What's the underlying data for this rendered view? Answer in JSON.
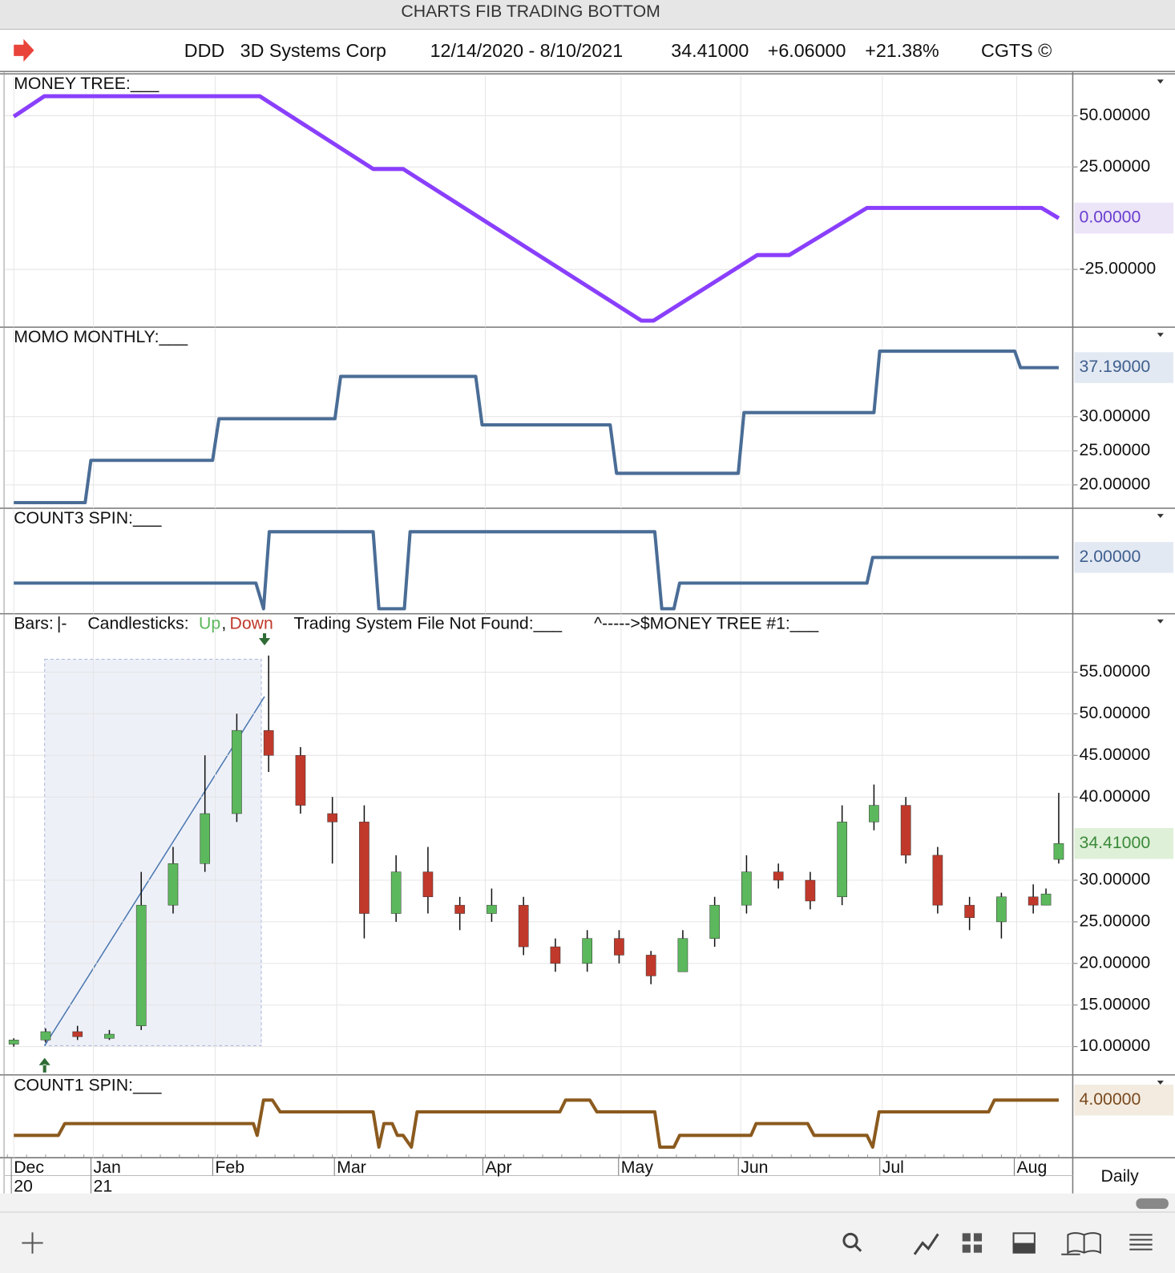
{
  "window_title": "CHARTS FIB TRADING BOTTOM",
  "header": {
    "symbol": "DDD",
    "name": "3D Systems Corp",
    "date_range": "12/14/2020 - 8/10/2021",
    "price": "34.41000",
    "change": "+6.06000",
    "change_pct": "+21.38%",
    "brand": "CGTS ©"
  },
  "chart_data": [
    {
      "type": "line",
      "title": "MONEY TREE:___",
      "color": "#8a3ffc",
      "x": [
        0,
        4.8,
        38.6,
        56.4,
        61.1,
        98.5,
        100.4,
        116.7,
        121.7,
        133.9,
        161.3,
        164
      ],
      "values": [
        49.6,
        59.5,
        59.5,
        24,
        24,
        -50,
        -50,
        -18,
        -18,
        5,
        5,
        0
      ],
      "last_label": "0.00000",
      "ylim": [
        -52,
        70
      ],
      "yticks": [
        {
          "value": 50,
          "label": "50.00000"
        },
        {
          "value": 25,
          "label": "25.00000"
        },
        {
          "value": -25,
          "label": "-25.00000"
        }
      ]
    },
    {
      "type": "line",
      "title": "MOMO MONTHLY:___",
      "color": "#4a6d96",
      "x": [
        0,
        11.2,
        12.1,
        31.2,
        32.2,
        50.4,
        51.3,
        72.5,
        73.5,
        93.6,
        94.6,
        113.7,
        114.6,
        135,
        135.9,
        157.1,
        158,
        164
      ],
      "values": [
        17.4,
        17.4,
        23.6,
        23.6,
        29.7,
        29.7,
        35.9,
        35.9,
        28.8,
        28.8,
        21.7,
        21.7,
        30.6,
        30.6,
        39.6,
        39.6,
        37.19,
        37.19
      ],
      "last_label": "37.19000",
      "ylim": [
        16.7,
        43
      ],
      "yticks": [
        {
          "value": 30,
          "label": "30.00000"
        },
        {
          "value": 25,
          "label": "25.00000"
        },
        {
          "value": 20,
          "label": "20.00000"
        }
      ]
    },
    {
      "type": "line",
      "title": "COUNT3 SPIN:___",
      "color": "#4a6d96",
      "x": [
        0,
        38,
        39.2,
        40.1,
        56.4,
        57.3,
        61.3,
        62.2,
        100.6,
        101.7,
        103.6,
        104.5,
        133.9,
        134.8,
        164
      ],
      "values": [
        1,
        1,
        0,
        3,
        3,
        0,
        0,
        3,
        3,
        0,
        0,
        1,
        1,
        2,
        2
      ],
      "last_label": "2.00000",
      "ylim": [
        -0.1,
        3.6
      ],
      "yticks": []
    },
    {
      "type": "candlestick",
      "legend": {
        "bars": "Bars:",
        "bars_symbol": "|-",
        "candles": "Candlesticks:",
        "up": "Up",
        "sep": ",",
        "down": "Down",
        "system": "Trading System File Not Found:___",
        "link": "^----->$MONEY TREE #1:___"
      },
      "up_color": "#5cb85c",
      "down_color": "#c0392b",
      "x": [
        0,
        5,
        10,
        15,
        20,
        25,
        30,
        35,
        40,
        45,
        50,
        55,
        60,
        65,
        70,
        75,
        80,
        85,
        90,
        95,
        100,
        105,
        110,
        115,
        120,
        125,
        130,
        135,
        140,
        145,
        150,
        155,
        160,
        162,
        164
      ],
      "open": [
        10.3,
        10.8,
        11.8,
        11,
        12.5,
        27,
        32,
        38,
        48,
        45,
        38,
        37,
        26,
        31,
        27,
        26,
        27,
        22,
        20,
        23,
        21,
        19,
        23,
        27,
        31,
        30,
        28,
        37,
        39,
        33,
        27,
        25,
        28,
        27,
        32.5
      ],
      "high": [
        11,
        12.2,
        12.5,
        12,
        31,
        34,
        45,
        50,
        57,
        46,
        40,
        39,
        33,
        34,
        28,
        29,
        28,
        23,
        24,
        24,
        21.5,
        24,
        28,
        33,
        32,
        31,
        39,
        41.5,
        40,
        34,
        28,
        28.5,
        29.5,
        29,
        40.5
      ],
      "low": [
        10,
        10.5,
        10.8,
        10.8,
        12,
        26,
        31,
        37,
        43,
        38,
        32,
        23,
        25,
        26,
        24,
        25,
        21,
        19,
        19,
        20,
        17.5,
        19,
        22,
        26,
        29,
        26.5,
        27,
        36,
        32,
        26,
        24,
        23,
        26,
        27,
        32
      ],
      "close": [
        10.8,
        11.8,
        11.2,
        11.5,
        27,
        32,
        38,
        48,
        45,
        39,
        37,
        26,
        31,
        28,
        26,
        27,
        22,
        20,
        23,
        21,
        18.5,
        23,
        27,
        31,
        30,
        27.5,
        37,
        39,
        33,
        27,
        25.5,
        28,
        27,
        28.35,
        34.41
      ],
      "last_label": "34.41000",
      "ylim": [
        6.8,
        58.7
      ],
      "yticks": [
        {
          "value": 55,
          "label": "55.00000"
        },
        {
          "value": 50,
          "label": "50.00000"
        },
        {
          "value": 45,
          "label": "45.00000"
        },
        {
          "value": 40,
          "label": "40.00000"
        },
        {
          "value": 30,
          "label": "30.00000"
        },
        {
          "value": 25,
          "label": "25.00000"
        },
        {
          "value": 20,
          "label": "20.00000"
        },
        {
          "value": 15,
          "label": "15.00000"
        },
        {
          "value": 10,
          "label": "10.00000"
        }
      ]
    },
    {
      "type": "line",
      "title": "COUNT1 SPIN:___",
      "color": "#8b5a1e",
      "x": [
        0,
        7,
        8,
        37.6,
        38.2,
        39.2,
        40.6,
        41.8,
        56.4,
        57.3,
        58.1,
        59.4,
        60.2,
        61.1,
        62.4,
        63.3,
        85.7,
        86.6,
        90.4,
        91.5,
        100.6,
        101.4,
        103.6,
        104.5,
        115.7,
        116.5,
        124.6,
        125.6,
        133.9,
        134.8,
        135.8,
        153,
        153.9,
        164
      ],
      "values": [
        1,
        1,
        2,
        2,
        1,
        4,
        4,
        3,
        3,
        0,
        2,
        2,
        1,
        1,
        0,
        3,
        3,
        4,
        4,
        3,
        3,
        0,
        0,
        1,
        1,
        2,
        2,
        1,
        1,
        0,
        3,
        3,
        4,
        4
      ],
      "last_label": "4.00000",
      "ylim": [
        -0.9,
        4.76
      ],
      "yticks": []
    }
  ],
  "x_axis": {
    "xlim": [
      -1.4,
      166.2
    ],
    "xticks": [
      {
        "value": 0,
        "label": "Dec"
      },
      {
        "value": 12.5,
        "label": "Jan"
      },
      {
        "value": 31.6,
        "label": "Feb"
      },
      {
        "value": 50.7,
        "label": "Mar"
      },
      {
        "value": 74,
        "label": "Apr"
      },
      {
        "value": 95.3,
        "label": "May"
      },
      {
        "value": 114.1,
        "label": "Jun"
      },
      {
        "value": 136.3,
        "label": "Jul"
      },
      {
        "value": 157.4,
        "label": "Aug"
      }
    ],
    "year_labels": [
      {
        "value": 0,
        "label": "20"
      },
      {
        "value": 12.5,
        "label": "21"
      }
    ]
  },
  "footer": {
    "interval": "Daily"
  }
}
